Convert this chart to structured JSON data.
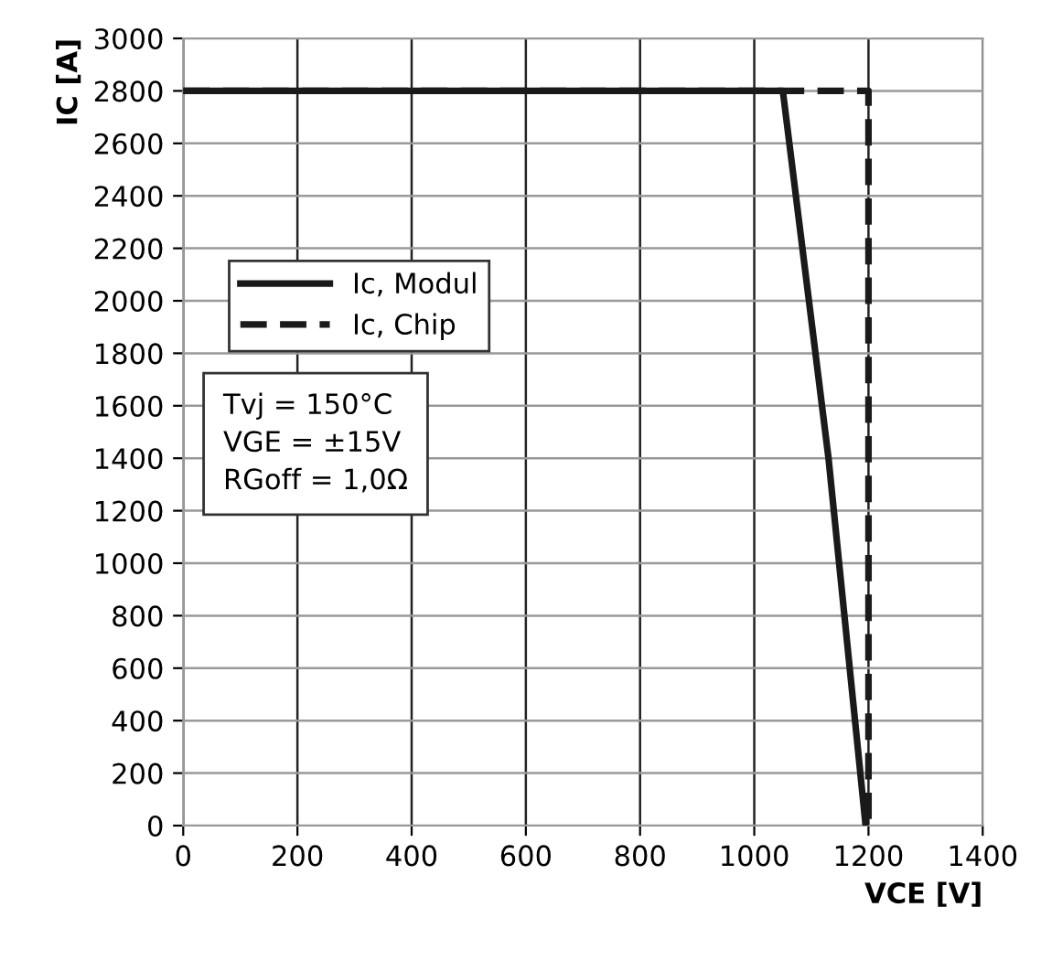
{
  "chart_data": {
    "type": "line",
    "xlabel": "VCE [V]",
    "ylabel": "IC [A]",
    "series": [
      {
        "name": "Ic, Modul",
        "color": "#1a1a1a",
        "x": [
          0,
          1050,
          1130,
          1195
        ],
        "values": [
          2800,
          2800,
          1400,
          0
        ],
        "line_style": "solid"
      },
      {
        "name": "Ic, Chip",
        "color": "#1a1a1a",
        "x": [
          0,
          1200,
          1200
        ],
        "values": [
          2800,
          2800,
          0
        ],
        "line_style": "dashed"
      }
    ],
    "xlim": [
      0,
      1400
    ],
    "xticks": [
      0,
      200,
      400,
      600,
      800,
      1000,
      1200,
      1400
    ],
    "ylim": [
      0,
      3000
    ],
    "yticks": [
      0,
      200,
      400,
      600,
      800,
      1000,
      1200,
      1400,
      1600,
      1800,
      2000,
      2200,
      2400,
      2600,
      2800,
      3000
    ],
    "grid": true,
    "legend": "left",
    "marker": "none",
    "annotations": [
      "Tvj = 150°C\nVGE = ±15V\nRGoff = 1,0Ω"
    ]
  }
}
